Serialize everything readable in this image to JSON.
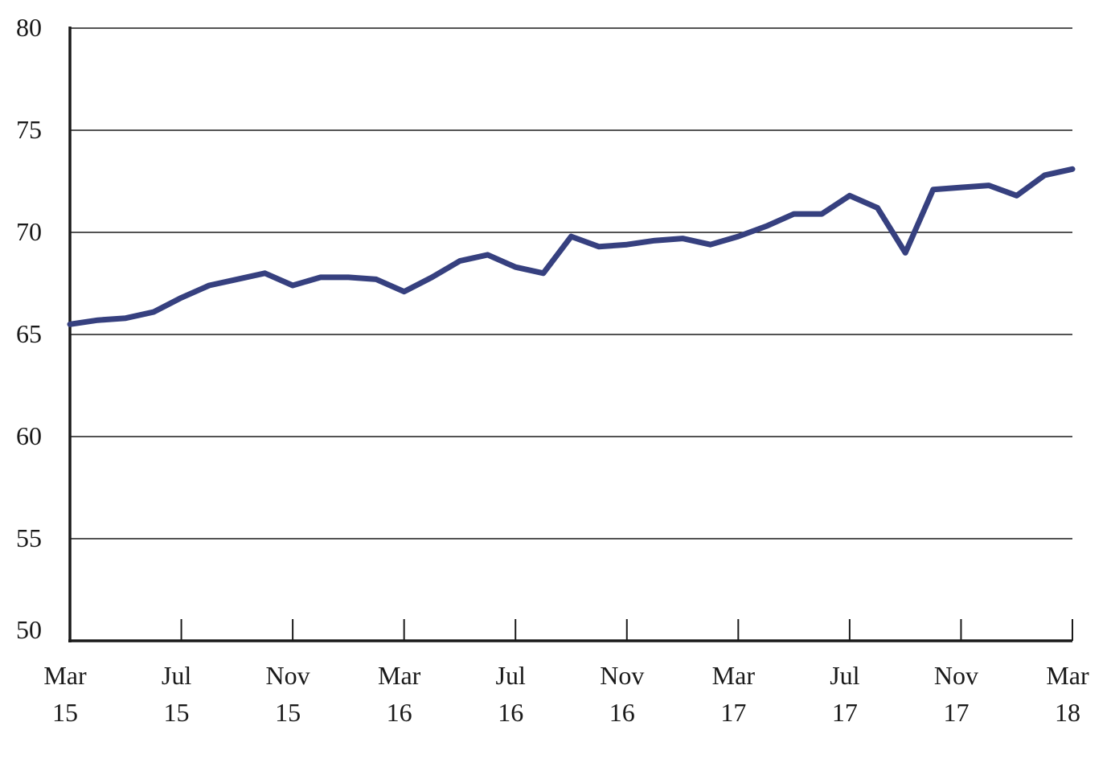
{
  "chart_data": {
    "type": "line",
    "title": "",
    "xlabel": "",
    "ylabel": "",
    "ylim": [
      50,
      80
    ],
    "yticks": [
      50,
      55,
      60,
      65,
      70,
      75,
      80
    ],
    "y_tick_labels": [
      "50",
      "55",
      "60",
      "65",
      "70",
      "75",
      "80"
    ],
    "grid": true,
    "x_tick_labels": [
      {
        "month": "Mar",
        "year": "15",
        "x": "2015-03"
      },
      {
        "month": "Jul",
        "year": "15",
        "x": "2015-07"
      },
      {
        "month": "Nov",
        "year": "15",
        "x": "2015-11"
      },
      {
        "month": "Mar",
        "year": "16",
        "x": "2016-03"
      },
      {
        "month": "Jul",
        "year": "16",
        "x": "2016-07"
      },
      {
        "month": "Nov",
        "year": "16",
        "x": "2016-11"
      },
      {
        "month": "Mar",
        "year": "17",
        "x": "2017-03"
      },
      {
        "month": "Jul",
        "year": "17",
        "x": "2017-07"
      },
      {
        "month": "Nov",
        "year": "17",
        "x": "2017-11"
      },
      {
        "month": "Mar",
        "year": "18",
        "x": "2018-03"
      }
    ],
    "series": [
      {
        "color": "#36407f",
        "x": [
          "2015-03",
          "2015-04",
          "2015-05",
          "2015-06",
          "2015-07",
          "2015-08",
          "2015-09",
          "2015-10",
          "2015-11",
          "2015-12",
          "2016-01",
          "2016-02",
          "2016-03",
          "2016-04",
          "2016-05",
          "2016-06",
          "2016-07",
          "2016-08",
          "2016-09",
          "2016-10",
          "2016-11",
          "2016-12",
          "2017-01",
          "2017-02",
          "2017-03",
          "2017-04",
          "2017-05",
          "2017-06",
          "2017-07",
          "2017-08",
          "2017-09",
          "2017-10",
          "2017-11",
          "2017-12",
          "2018-01",
          "2018-02",
          "2018-03"
        ],
        "values": [
          65.5,
          65.7,
          65.8,
          66.1,
          66.8,
          67.4,
          67.7,
          68.0,
          67.4,
          67.8,
          67.8,
          67.7,
          67.1,
          67.8,
          68.6,
          68.9,
          68.3,
          68.0,
          69.8,
          69.3,
          69.4,
          69.6,
          69.7,
          69.4,
          69.8,
          70.3,
          70.9,
          70.9,
          71.8,
          71.2,
          69.0,
          72.1,
          72.2,
          72.3,
          71.8,
          72.8,
          73.1
        ]
      }
    ]
  }
}
